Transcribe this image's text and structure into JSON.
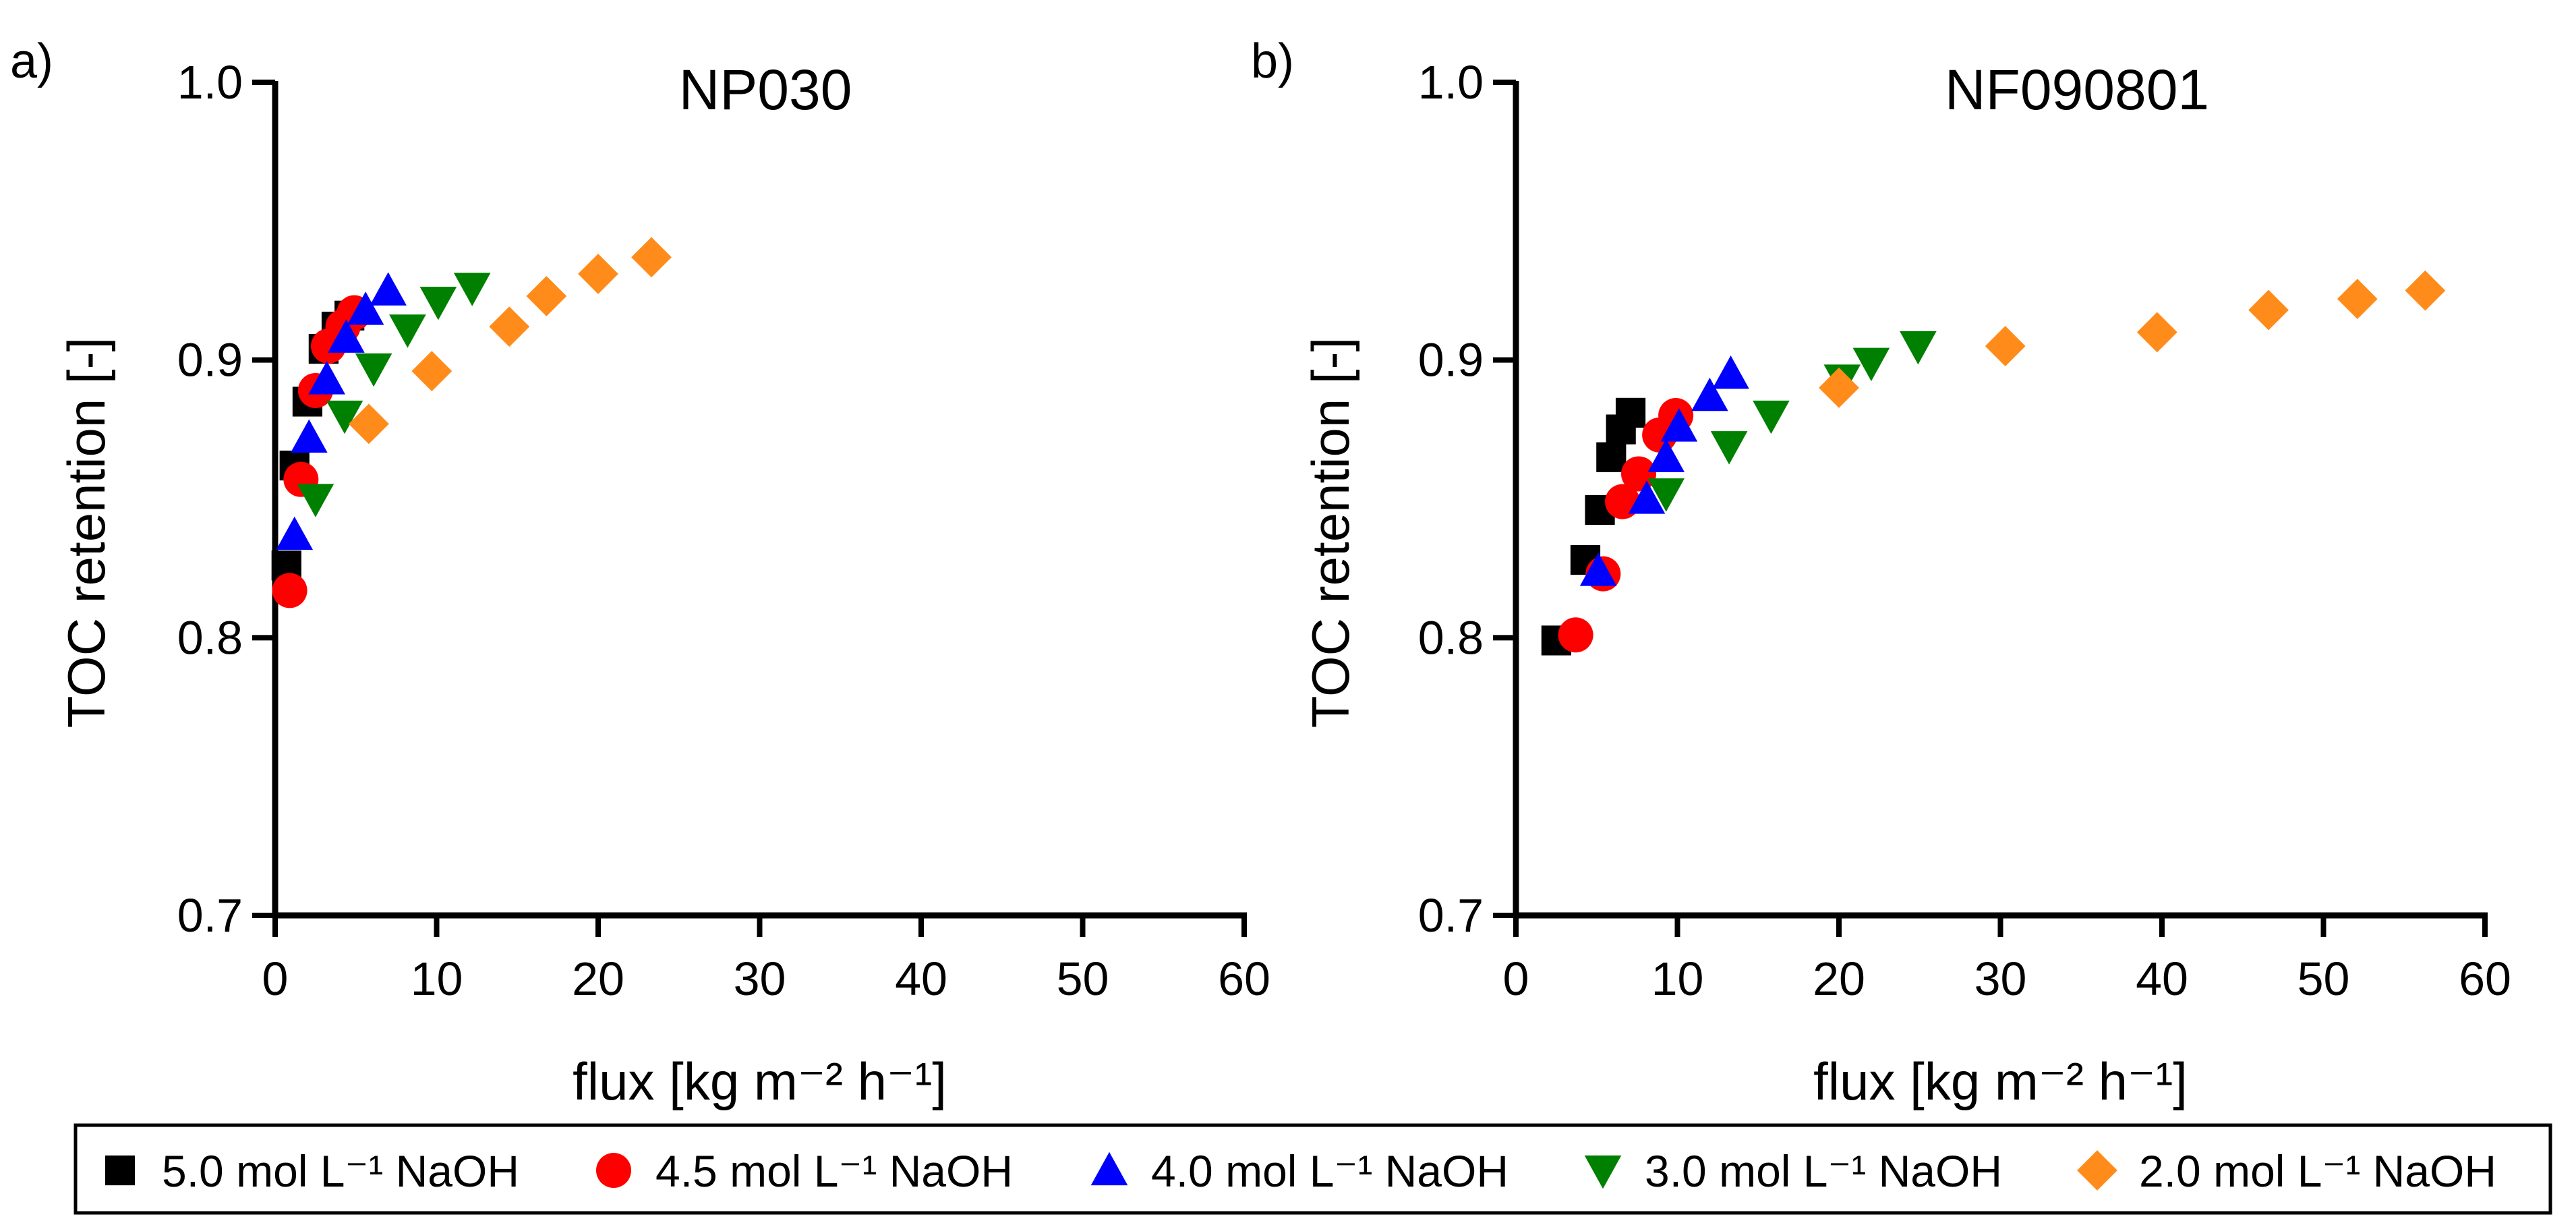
{
  "legend": {
    "entries": [
      {
        "series": 0,
        "label": "5.0 mol L⁻¹ NaOH",
        "marker": "square-icon"
      },
      {
        "series": 1,
        "label": "4.5 mol L⁻¹ NaOH",
        "marker": "circle-icon"
      },
      {
        "series": 2,
        "label": "4.0 mol L⁻¹ NaOH",
        "marker": "triangle-up-icon"
      },
      {
        "series": 3,
        "label": "3.0 mol L⁻¹ NaOH",
        "marker": "triangle-down-icon"
      },
      {
        "series": 4,
        "label": "2.0 mol L⁻¹ NaOH",
        "marker": "diamond-icon"
      }
    ]
  },
  "series_style": [
    {
      "marker": "square",
      "color": "#000000"
    },
    {
      "marker": "circle",
      "color": "#ff0000"
    },
    {
      "marker": "triangle-up",
      "color": "#0000ff"
    },
    {
      "marker": "triangle-down",
      "color": "#008000"
    },
    {
      "marker": "diamond",
      "color": "#ff8c1a"
    }
  ],
  "chart_data": [
    {
      "type": "scatter",
      "panel_label": "a)",
      "title": "NP030",
      "xlabel": "flux [kg m⁻² h⁻¹]",
      "ylabel": "TOC retention [-]",
      "xlim": [
        0,
        60
      ],
      "ylim": [
        0.7,
        1.0
      ],
      "xticks": [
        "0",
        "10",
        "20",
        "30",
        "40",
        "50",
        "60"
      ],
      "yticks": [
        "0.7",
        "0.8",
        "0.9",
        "1.0"
      ],
      "series": [
        {
          "name": "5.0 mol L⁻¹ NaOH",
          "points": [
            [
              0.7,
              0.826
            ],
            [
              1.2,
              0.862
            ],
            [
              2.0,
              0.885
            ],
            [
              3.0,
              0.904
            ],
            [
              3.8,
              0.912
            ],
            [
              4.6,
              0.916
            ]
          ]
        },
        {
          "name": "4.5 mol L⁻¹ NaOH",
          "points": [
            [
              0.9,
              0.817
            ],
            [
              1.6,
              0.857
            ],
            [
              2.5,
              0.889
            ],
            [
              3.3,
              0.905
            ],
            [
              4.2,
              0.912
            ],
            [
              4.9,
              0.917
            ]
          ]
        },
        {
          "name": "4.0 mol L⁻¹ NaOH",
          "points": [
            [
              1.2,
              0.837
            ],
            [
              2.1,
              0.872
            ],
            [
              3.2,
              0.893
            ],
            [
              4.4,
              0.908
            ],
            [
              5.6,
              0.918
            ],
            [
              7.0,
              0.925
            ]
          ]
        },
        {
          "name": "3.0 mol L⁻¹ NaOH",
          "points": [
            [
              2.5,
              0.85
            ],
            [
              4.3,
              0.88
            ],
            [
              6.1,
              0.897
            ],
            [
              8.2,
              0.911
            ],
            [
              10.1,
              0.921
            ],
            [
              12.2,
              0.926
            ]
          ]
        },
        {
          "name": "2.0 mol L⁻¹ NaOH",
          "points": [
            [
              5.8,
              0.877
            ],
            [
              9.7,
              0.896
            ],
            [
              14.5,
              0.912
            ],
            [
              16.8,
              0.923
            ],
            [
              20.0,
              0.931
            ],
            [
              23.3,
              0.937
            ]
          ]
        }
      ]
    },
    {
      "type": "scatter",
      "panel_label": "b)",
      "title": "NF090801",
      "xlabel": "flux [kg m⁻² h⁻¹]",
      "ylabel": "TOC retention [-]",
      "xlim": [
        0,
        60
      ],
      "ylim": [
        0.7,
        1.0
      ],
      "xticks": [
        "0",
        "10",
        "20",
        "30",
        "40",
        "50",
        "60"
      ],
      "yticks": [
        "0.7",
        "0.8",
        "0.9",
        "1.0"
      ],
      "series": [
        {
          "name": "5.0 mol L⁻¹ NaOH",
          "points": [
            [
              2.5,
              0.799
            ],
            [
              4.3,
              0.828
            ],
            [
              5.2,
              0.846
            ],
            [
              5.9,
              0.865
            ],
            [
              6.5,
              0.875
            ],
            [
              7.1,
              0.881
            ]
          ]
        },
        {
          "name": "4.5 mol L⁻¹ NaOH",
          "points": [
            [
              3.7,
              0.801
            ],
            [
              5.4,
              0.823
            ],
            [
              6.6,
              0.849
            ],
            [
              7.6,
              0.859
            ],
            [
              8.9,
              0.873
            ],
            [
              9.9,
              0.88
            ]
          ]
        },
        {
          "name": "4.0 mol L⁻¹ NaOH",
          "points": [
            [
              5.1,
              0.824
            ],
            [
              8.1,
              0.85
            ],
            [
              9.3,
              0.865
            ],
            [
              10.1,
              0.876
            ],
            [
              12.0,
              0.887
            ],
            [
              13.3,
              0.895
            ]
          ]
        },
        {
          "name": "3.0 mol L⁻¹ NaOH",
          "points": [
            [
              9.3,
              0.852
            ],
            [
              13.2,
              0.869
            ],
            [
              15.8,
              0.88
            ],
            [
              20.2,
              0.893
            ],
            [
              22.0,
              0.899
            ],
            [
              24.9,
              0.905
            ]
          ]
        },
        {
          "name": "2.0 mol L⁻¹ NaOH",
          "points": [
            [
              20.0,
              0.89
            ],
            [
              30.3,
              0.905
            ],
            [
              39.7,
              0.91
            ],
            [
              46.6,
              0.918
            ],
            [
              52.1,
              0.922
            ],
            [
              56.3,
              0.925
            ]
          ]
        }
      ]
    }
  ]
}
